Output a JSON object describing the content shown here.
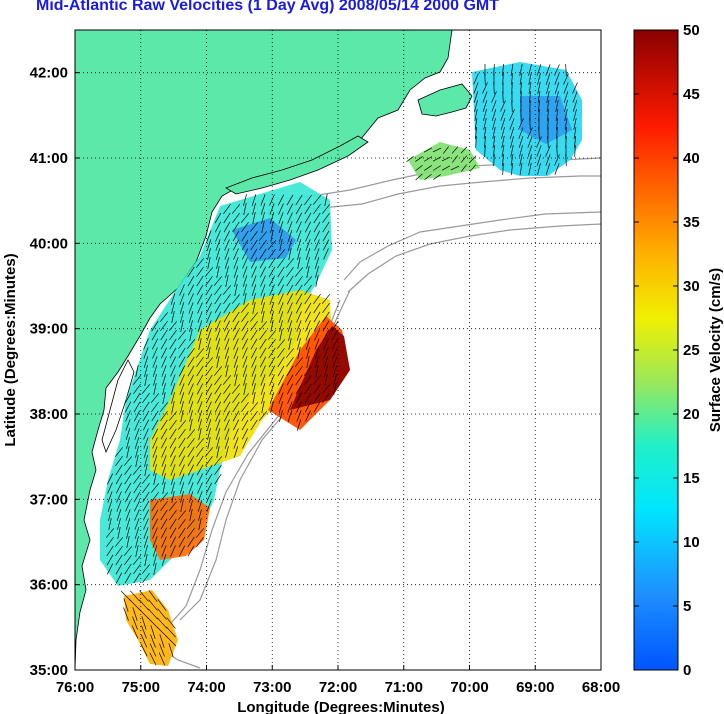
{
  "title": "Mid-Atlantic Raw Velocities (1 Day Avg) 2008/05/14 2000 GMT",
  "map": {
    "xlabel": "Longitude (Degrees:Minutes)",
    "ylabel": "Latitude (Degrees:Minutes)",
    "lon_range": [
      -76,
      -68
    ],
    "lat_range": [
      35,
      42.5
    ],
    "lon_ticks": [
      {
        "value": -76,
        "label": "76:00"
      },
      {
        "value": -75,
        "label": "75:00"
      },
      {
        "value": -74,
        "label": "74:00"
      },
      {
        "value": -73,
        "label": "73:00"
      },
      {
        "value": -72,
        "label": "72:00"
      },
      {
        "value": -71,
        "label": "71:00"
      },
      {
        "value": -70,
        "label": "70:00"
      },
      {
        "value": -69,
        "label": "69:00"
      },
      {
        "value": -68,
        "label": "68:00"
      }
    ],
    "lat_ticks": [
      {
        "value": 35,
        "label": "35:00"
      },
      {
        "value": 36,
        "label": "36:00"
      },
      {
        "value": 37,
        "label": "37:00"
      },
      {
        "value": 38,
        "label": "38:00"
      },
      {
        "value": 39,
        "label": "39:00"
      },
      {
        "value": 40,
        "label": "40:00"
      },
      {
        "value": 41,
        "label": "41:00"
      },
      {
        "value": 42,
        "label": "42:00"
      }
    ],
    "grid": true,
    "land_color": "#5ce8a8",
    "water_color": "#ffffff",
    "contour_color": "#9a9a9a"
  },
  "colorbar": {
    "label": "Surface Velocity (cm/s)",
    "range": [
      0,
      50
    ],
    "ticks": [
      {
        "value": 0,
        "label": "0"
      },
      {
        "value": 5,
        "label": "5"
      },
      {
        "value": 10,
        "label": "10"
      },
      {
        "value": 15,
        "label": "15"
      },
      {
        "value": 20,
        "label": "20"
      },
      {
        "value": 25,
        "label": "25"
      },
      {
        "value": 30,
        "label": "30"
      },
      {
        "value": 35,
        "label": "35"
      },
      {
        "value": 40,
        "label": "40"
      },
      {
        "value": 45,
        "label": "45"
      },
      {
        "value": 50,
        "label": "50"
      }
    ],
    "colormap": "jet"
  }
}
